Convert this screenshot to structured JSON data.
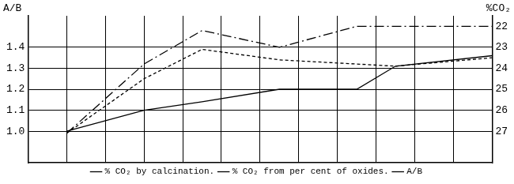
{
  "chart_data": {
    "type": "line",
    "ylabel": "A/B",
    "y2label": "%CO₂",
    "x": [
      1,
      3,
      4.5,
      6.5,
      8.5,
      9.5,
      12
    ],
    "xlim": [
      0,
      12
    ],
    "xticks": [
      0,
      1,
      2,
      3,
      4,
      5,
      6,
      7,
      8,
      9,
      10,
      11,
      12
    ],
    "ylim": [
      0.85,
      1.55
    ],
    "yticks": [
      {
        "value": 1,
        "label": "1.0"
      },
      1.1,
      1.2,
      1.3,
      1.4
    ],
    "y2lim": [
      21.5,
      28.5
    ],
    "y2ticks": [
      22,
      23,
      24,
      25,
      26,
      27
    ],
    "grid": true,
    "legend": "bottom",
    "tick_labels": "y",
    "series": [
      {
        "name": "% CO₂ by calcination.",
        "color": "#000000",
        "line_style": "dashed",
        "axis": "y2",
        "values": [
          27.1,
          24.5,
          23.1,
          23.6,
          23.8,
          23.9,
          23.5
        ]
      },
      {
        "name": "% CO₂ from per cent of oxides.",
        "color": "#000000",
        "line_style": "dashdot",
        "axis": "y2",
        "values": [
          27.1,
          23.8,
          22.2,
          23.0,
          22.0,
          22.0,
          22.0
        ]
      },
      {
        "name": "A/B",
        "color": "#000000",
        "line_style": "solid",
        "values": [
          1.0,
          1.1,
          1.14,
          1.2,
          1.2,
          1.31,
          1.36
        ]
      }
    ]
  }
}
